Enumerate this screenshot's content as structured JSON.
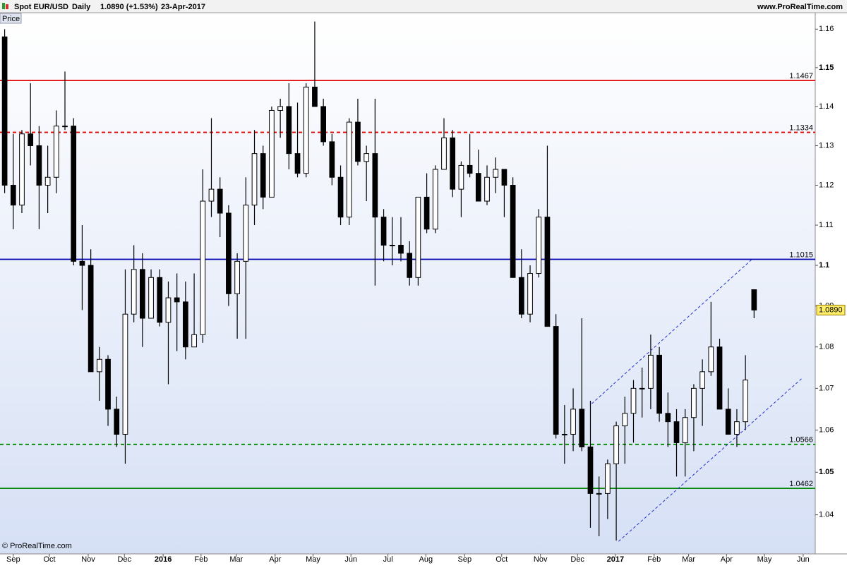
{
  "header": {
    "symbol": "Spot EUR/USD",
    "period": "Daily",
    "last": "1.0890 (+1.53%)",
    "date": "23-Apr-2017",
    "site": "www.ProRealTime.com",
    "tab": "Price",
    "copyright": "© ProRealTime.com"
  },
  "chart_data": {
    "type": "candlestick",
    "log_scale": true,
    "up_color": "#ffffff",
    "down_color": "#000000",
    "candles": {
      "open": [
        1.158,
        1.12,
        1.115,
        1.133,
        1.13,
        1.12,
        1.122,
        1.135,
        1.135,
        1.101,
        1.1,
        1.074,
        1.077,
        1.065,
        1.059,
        1.088,
        1.099,
        1.087,
        1.097,
        1.086,
        1.092,
        1.091,
        1.08,
        1.083,
        1.116,
        1.119,
        1.113,
        1.093,
        1.101,
        1.115,
        1.128,
        1.117,
        1.139,
        1.14,
        1.128,
        1.123,
        1.145,
        1.14,
        1.131,
        1.122,
        1.112,
        1.136,
        1.126,
        1.128,
        1.112,
        1.105,
        1.105,
        1.103,
        1.097,
        1.117,
        1.109,
        1.124,
        1.132,
        1.119,
        1.125,
        1.123,
        1.116,
        1.122,
        1.124,
        1.12,
        1.097,
        1.088,
        1.098,
        1.112,
        1.085,
        1.059,
        1.059,
        1.065,
        1.056,
        1.045,
        1.045,
        1.052,
        1.061,
        1.064,
        1.07,
        1.07,
        1.078,
        1.064,
        1.062,
        1.057,
        1.063,
        1.07,
        1.074,
        1.08,
        1.065,
        1.059,
        1.062,
        1.094
      ],
      "high": [
        1.16,
        1.133,
        1.134,
        1.146,
        1.135,
        1.13,
        1.139,
        1.149,
        1.137,
        1.11,
        1.104,
        1.08,
        1.078,
        1.068,
        1.099,
        1.105,
        1.103,
        1.099,
        1.099,
        1.096,
        1.098,
        1.096,
        1.098,
        1.124,
        1.137,
        1.122,
        1.115,
        1.103,
        1.122,
        1.134,
        1.13,
        1.14,
        1.142,
        1.146,
        1.141,
        1.146,
        1.162,
        1.142,
        1.133,
        1.125,
        1.137,
        1.142,
        1.13,
        1.142,
        1.114,
        1.112,
        1.112,
        1.106,
        1.117,
        1.123,
        1.125,
        1.137,
        1.134,
        1.126,
        1.133,
        1.129,
        1.125,
        1.127,
        1.124,
        1.122,
        1.104,
        1.1,
        1.114,
        1.13,
        1.088,
        1.066,
        1.07,
        1.087,
        1.067,
        1.049,
        1.053,
        1.062,
        1.068,
        1.072,
        1.075,
        1.083,
        1.08,
        1.069,
        1.065,
        1.065,
        1.071,
        1.077,
        1.091,
        1.082,
        1.07,
        1.065,
        1.078,
        1.094
      ],
      "low": [
        1.118,
        1.109,
        1.113,
        1.125,
        1.109,
        1.113,
        1.118,
        1.134,
        1.1,
        1.089,
        1.074,
        1.067,
        1.061,
        1.056,
        1.052,
        1.086,
        1.08,
        1.087,
        1.085,
        1.071,
        1.079,
        1.077,
        1.08,
        1.081,
        1.112,
        1.107,
        1.09,
        1.082,
        1.082,
        1.11,
        1.114,
        1.117,
        1.132,
        1.124,
        1.122,
        1.122,
        1.14,
        1.13,
        1.12,
        1.11,
        1.11,
        1.125,
        1.116,
        1.095,
        1.101,
        1.1,
        1.101,
        1.095,
        1.095,
        1.108,
        1.108,
        1.124,
        1.117,
        1.112,
        1.122,
        1.116,
        1.115,
        1.118,
        1.112,
        1.097,
        1.087,
        1.086,
        1.097,
        1.085,
        1.058,
        1.052,
        1.055,
        1.055,
        1.037,
        1.035,
        1.039,
        1.034,
        1.052,
        1.057,
        1.063,
        1.065,
        1.062,
        1.056,
        1.049,
        1.049,
        1.055,
        1.061,
        1.073,
        1.065,
        1.059,
        1.056,
        1.06,
        1.087
      ],
      "close": [
        1.12,
        1.115,
        1.133,
        1.13,
        1.12,
        1.122,
        1.135,
        1.135,
        1.101,
        1.1,
        1.074,
        1.077,
        1.065,
        1.059,
        1.088,
        1.099,
        1.087,
        1.097,
        1.086,
        1.092,
        1.091,
        1.08,
        1.083,
        1.116,
        1.119,
        1.113,
        1.093,
        1.101,
        1.115,
        1.128,
        1.117,
        1.139,
        1.14,
        1.128,
        1.123,
        1.145,
        1.14,
        1.131,
        1.122,
        1.112,
        1.136,
        1.126,
        1.128,
        1.112,
        1.105,
        1.105,
        1.103,
        1.097,
        1.117,
        1.109,
        1.124,
        1.132,
        1.119,
        1.125,
        1.123,
        1.116,
        1.122,
        1.124,
        1.12,
        1.097,
        1.088,
        1.098,
        1.112,
        1.085,
        1.059,
        1.059,
        1.065,
        1.056,
        1.045,
        1.045,
        1.052,
        1.061,
        1.064,
        1.07,
        1.07,
        1.078,
        1.064,
        1.062,
        1.057,
        1.063,
        1.07,
        1.074,
        1.08,
        1.065,
        1.059,
        1.062,
        1.072,
        1.089
      ]
    },
    "xlim": [
      -0.54,
      94.1
    ],
    "xticks": [
      {
        "value": 1.0,
        "label": "Sep"
      },
      {
        "value": 5.2,
        "label": "Oct"
      },
      {
        "value": 9.7,
        "label": "Nov"
      },
      {
        "value": 13.9,
        "label": "Dec"
      },
      {
        "value": 18.4,
        "label": "2016"
      },
      {
        "value": 22.8,
        "label": "Feb"
      },
      {
        "value": 26.9,
        "label": "Mar"
      },
      {
        "value": 31.4,
        "label": "Apr"
      },
      {
        "value": 35.8,
        "label": "May"
      },
      {
        "value": 40.2,
        "label": "Jun"
      },
      {
        "value": 44.5,
        "label": "Jul"
      },
      {
        "value": 48.9,
        "label": "Aug"
      },
      {
        "value": 53.4,
        "label": "Sep"
      },
      {
        "value": 57.7,
        "label": "Oct"
      },
      {
        "value": 62.2,
        "label": "Nov"
      },
      {
        "value": 66.5,
        "label": "Dec"
      },
      {
        "value": 70.9,
        "label": "2017"
      },
      {
        "value": 75.4,
        "label": "Feb"
      },
      {
        "value": 79.4,
        "label": "Mar"
      },
      {
        "value": 83.8,
        "label": "Apr"
      },
      {
        "value": 88.2,
        "label": "May"
      },
      {
        "value": 92.7,
        "label": "Jun"
      }
    ],
    "ylim": [
      1.0309,
      1.1643
    ],
    "yticks": [
      1.04,
      1.05,
      1.06,
      1.07,
      1.08,
      1.09,
      1.1,
      1.11,
      1.12,
      1.13,
      1.14,
      1.15,
      1.16
    ],
    "levels": [
      {
        "value": 1.1467,
        "color": "#e00000",
        "dashed": false
      },
      {
        "value": 1.1334,
        "color": "#e00000",
        "dashed": true
      },
      {
        "value": 1.1015,
        "color": "#0000b0",
        "dashed": false
      },
      {
        "value": 1.0566,
        "color": "#008800",
        "dashed": true
      },
      {
        "value": 1.0462,
        "color": "#008800",
        "dashed": false
      }
    ],
    "trendlines": [
      {
        "color": "#2233cc",
        "x": [
          68.15,
          86.76
        ],
        "y": [
          1.0663,
          1.1015
        ]
      },
      {
        "color": "#2233cc",
        "x": [
          71.27,
          92.5
        ],
        "y": [
          1.0338,
          1.0723
        ]
      }
    ],
    "price_tag": {
      "value": 1.089,
      "label": "1.0890",
      "color": "#ffee66"
    }
  }
}
